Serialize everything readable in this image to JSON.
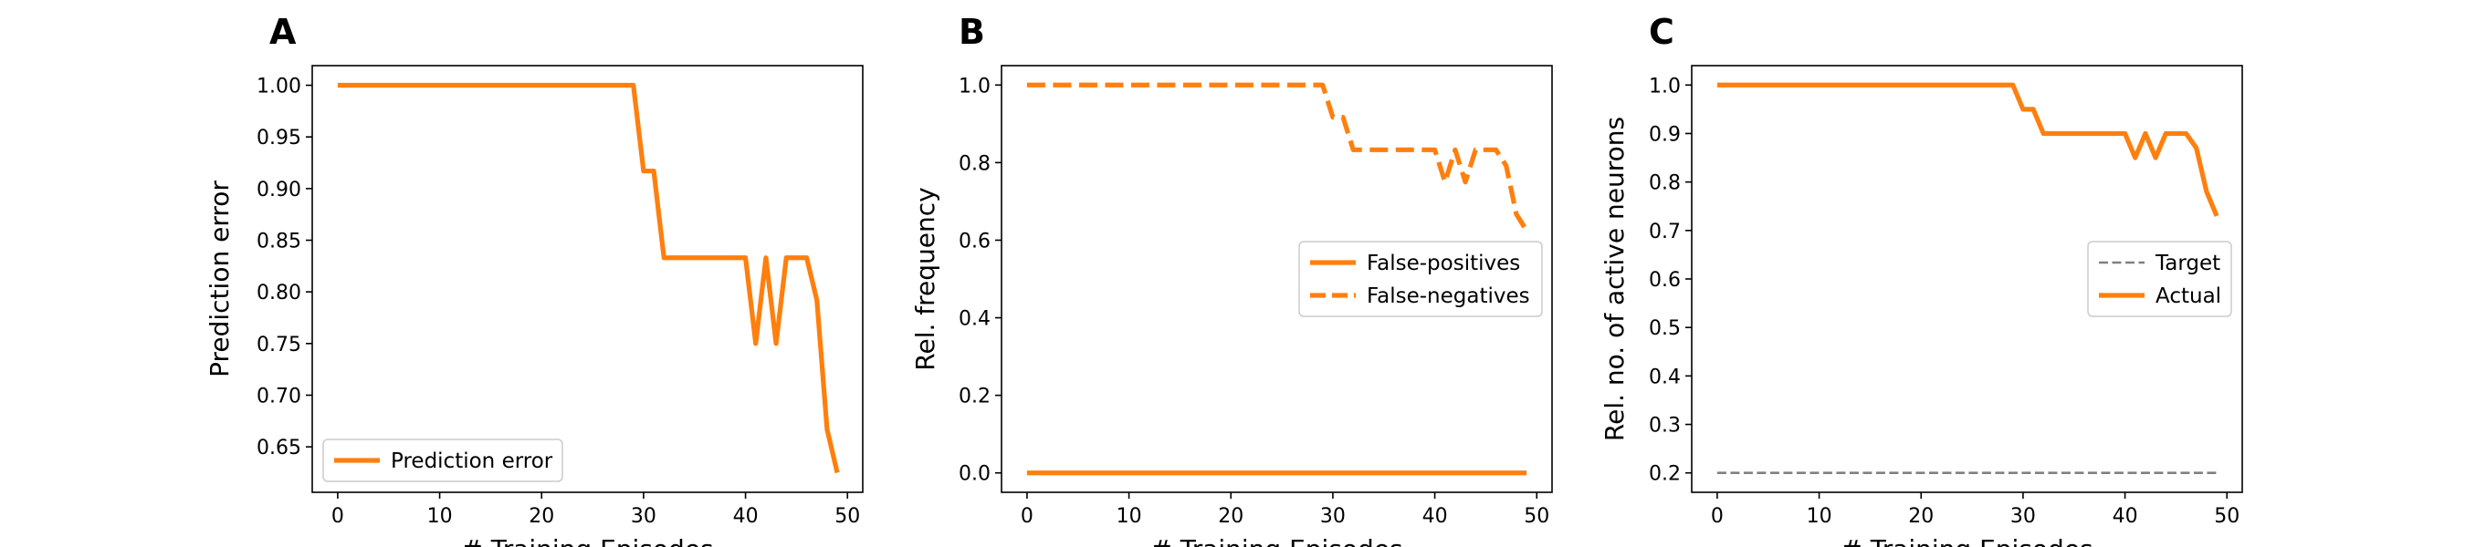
{
  "chart_data": [
    {
      "type": "line",
      "panel": "A",
      "xlabel": "# Training Episodes",
      "ylabel": "Prediction error",
      "xlim": [
        -2.5,
        51.5
      ],
      "ylim": [
        0.606,
        1.019
      ],
      "xticks": [
        0,
        10,
        20,
        30,
        40,
        50
      ],
      "yticks": [
        0.65,
        0.7,
        0.75,
        0.8,
        0.85,
        0.9,
        0.95,
        1.0
      ],
      "ytick_decimals": 2,
      "grid": false,
      "legend_position": "lower-left",
      "series": [
        {
          "name": "Prediction error",
          "color": "#ff7f0e",
          "linestyle": "solid",
          "x": [
            0,
            1,
            2,
            3,
            4,
            5,
            6,
            7,
            8,
            9,
            10,
            11,
            12,
            13,
            14,
            15,
            16,
            17,
            18,
            19,
            20,
            21,
            22,
            23,
            24,
            25,
            26,
            27,
            28,
            29,
            30,
            31,
            32,
            33,
            34,
            35,
            36,
            37,
            38,
            39,
            40,
            41,
            42,
            43,
            44,
            45,
            46,
            47,
            48,
            49
          ],
          "y": [
            1,
            1,
            1,
            1,
            1,
            1,
            1,
            1,
            1,
            1,
            1,
            1,
            1,
            1,
            1,
            1,
            1,
            1,
            1,
            1,
            1,
            1,
            1,
            1,
            1,
            1,
            1,
            1,
            1,
            1,
            0.917,
            0.917,
            0.833,
            0.833,
            0.833,
            0.833,
            0.833,
            0.833,
            0.833,
            0.833,
            0.833,
            0.75,
            0.833,
            0.75,
            0.833,
            0.833,
            0.833,
            0.792,
            0.667,
            0.625
          ]
        }
      ]
    },
    {
      "type": "line",
      "panel": "B",
      "xlabel": "# Training Episodes",
      "ylabel": "Rel. frequency",
      "xlim": [
        -2.5,
        51.5
      ],
      "ylim": [
        -0.05,
        1.05
      ],
      "xticks": [
        0,
        10,
        20,
        30,
        40,
        50
      ],
      "yticks": [
        0.0,
        0.2,
        0.4,
        0.6,
        0.8,
        1.0
      ],
      "ytick_decimals": 1,
      "grid": false,
      "legend_position": "center-right",
      "series": [
        {
          "name": "False-positives",
          "color": "#ff7f0e",
          "linestyle": "solid",
          "x": [
            0,
            1,
            2,
            3,
            4,
            5,
            6,
            7,
            8,
            9,
            10,
            11,
            12,
            13,
            14,
            15,
            16,
            17,
            18,
            19,
            20,
            21,
            22,
            23,
            24,
            25,
            26,
            27,
            28,
            29,
            30,
            31,
            32,
            33,
            34,
            35,
            36,
            37,
            38,
            39,
            40,
            41,
            42,
            43,
            44,
            45,
            46,
            47,
            48,
            49
          ],
          "y": [
            0,
            0,
            0,
            0,
            0,
            0,
            0,
            0,
            0,
            0,
            0,
            0,
            0,
            0,
            0,
            0,
            0,
            0,
            0,
            0,
            0,
            0,
            0,
            0,
            0,
            0,
            0,
            0,
            0,
            0,
            0,
            0,
            0,
            0,
            0,
            0,
            0,
            0,
            0,
            0,
            0,
            0,
            0,
            0,
            0,
            0,
            0,
            0,
            0,
            0
          ]
        },
        {
          "name": "False-negatives",
          "color": "#ff7f0e",
          "linestyle": "dashed",
          "x": [
            0,
            1,
            2,
            3,
            4,
            5,
            6,
            7,
            8,
            9,
            10,
            11,
            12,
            13,
            14,
            15,
            16,
            17,
            18,
            19,
            20,
            21,
            22,
            23,
            24,
            25,
            26,
            27,
            28,
            29,
            30,
            31,
            32,
            33,
            34,
            35,
            36,
            37,
            38,
            39,
            40,
            41,
            42,
            43,
            44,
            45,
            46,
            47,
            48,
            49
          ],
          "y": [
            1,
            1,
            1,
            1,
            1,
            1,
            1,
            1,
            1,
            1,
            1,
            1,
            1,
            1,
            1,
            1,
            1,
            1,
            1,
            1,
            1,
            1,
            1,
            1,
            1,
            1,
            1,
            1,
            1,
            1,
            0.917,
            0.917,
            0.833,
            0.833,
            0.833,
            0.833,
            0.833,
            0.833,
            0.833,
            0.833,
            0.833,
            0.75,
            0.833,
            0.75,
            0.833,
            0.833,
            0.833,
            0.792,
            0.667,
            0.625
          ]
        }
      ]
    },
    {
      "type": "line",
      "panel": "C",
      "xlabel": "# Training Episodes",
      "ylabel": "Rel. no. of active neurons",
      "xlim": [
        -2.5,
        51.5
      ],
      "ylim": [
        0.16,
        1.04
      ],
      "xticks": [
        0,
        10,
        20,
        30,
        40,
        50
      ],
      "yticks": [
        0.2,
        0.3,
        0.4,
        0.5,
        0.6,
        0.7,
        0.8,
        0.9,
        1.0
      ],
      "ytick_decimals": 1,
      "grid": false,
      "legend_position": "center-right",
      "series": [
        {
          "name": "Target",
          "color": "#808080",
          "linestyle": "dashed",
          "x": [
            0,
            1,
            2,
            3,
            4,
            5,
            6,
            7,
            8,
            9,
            10,
            11,
            12,
            13,
            14,
            15,
            16,
            17,
            18,
            19,
            20,
            21,
            22,
            23,
            24,
            25,
            26,
            27,
            28,
            29,
            30,
            31,
            32,
            33,
            34,
            35,
            36,
            37,
            38,
            39,
            40,
            41,
            42,
            43,
            44,
            45,
            46,
            47,
            48,
            49
          ],
          "y": [
            0.2,
            0.2,
            0.2,
            0.2,
            0.2,
            0.2,
            0.2,
            0.2,
            0.2,
            0.2,
            0.2,
            0.2,
            0.2,
            0.2,
            0.2,
            0.2,
            0.2,
            0.2,
            0.2,
            0.2,
            0.2,
            0.2,
            0.2,
            0.2,
            0.2,
            0.2,
            0.2,
            0.2,
            0.2,
            0.2,
            0.2,
            0.2,
            0.2,
            0.2,
            0.2,
            0.2,
            0.2,
            0.2,
            0.2,
            0.2,
            0.2,
            0.2,
            0.2,
            0.2,
            0.2,
            0.2,
            0.2,
            0.2,
            0.2,
            0.2
          ]
        },
        {
          "name": "Actual",
          "color": "#ff7f0e",
          "linestyle": "solid",
          "x": [
            0,
            1,
            2,
            3,
            4,
            5,
            6,
            7,
            8,
            9,
            10,
            11,
            12,
            13,
            14,
            15,
            16,
            17,
            18,
            19,
            20,
            21,
            22,
            23,
            24,
            25,
            26,
            27,
            28,
            29,
            30,
            31,
            32,
            33,
            34,
            35,
            36,
            37,
            38,
            39,
            40,
            41,
            42,
            43,
            44,
            45,
            46,
            47,
            48,
            49
          ],
          "y": [
            1,
            1,
            1,
            1,
            1,
            1,
            1,
            1,
            1,
            1,
            1,
            1,
            1,
            1,
            1,
            1,
            1,
            1,
            1,
            1,
            1,
            1,
            1,
            1,
            1,
            1,
            1,
            1,
            1,
            1,
            0.95,
            0.95,
            0.9,
            0.9,
            0.9,
            0.9,
            0.9,
            0.9,
            0.9,
            0.9,
            0.9,
            0.85,
            0.9,
            0.85,
            0.9,
            0.9,
            0.9,
            0.87,
            0.78,
            0.73
          ]
        }
      ]
    }
  ]
}
